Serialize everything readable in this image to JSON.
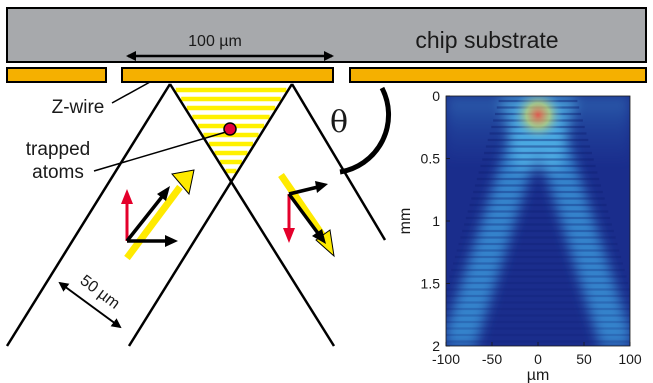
{
  "substrate": {
    "label": "chip substrate",
    "color": "#a7a9ac",
    "wire_color": "#f5b000",
    "width_label": "100 µm"
  },
  "labels": {
    "z_wire": "Z-wire",
    "trapped_atoms_line1": "trapped",
    "trapped_atoms_line2": "atoms",
    "beam_width": "50 µm",
    "angle": "θ"
  },
  "colors": {
    "atom_stripes": "#fff100",
    "atom_dot": "#e4003b",
    "polarization_yellow": "#ffea00",
    "arrow_red": "#e4002b",
    "arrow_black": "#000000"
  },
  "plot": {
    "y_ticks": [
      "0",
      "0.5",
      "1",
      "1.5",
      "2"
    ],
    "x_ticks": [
      "-100",
      "-50",
      "0",
      "50",
      "100"
    ],
    "y_label": "mm",
    "x_label": "µm",
    "background_color": "#1a2d8c"
  }
}
